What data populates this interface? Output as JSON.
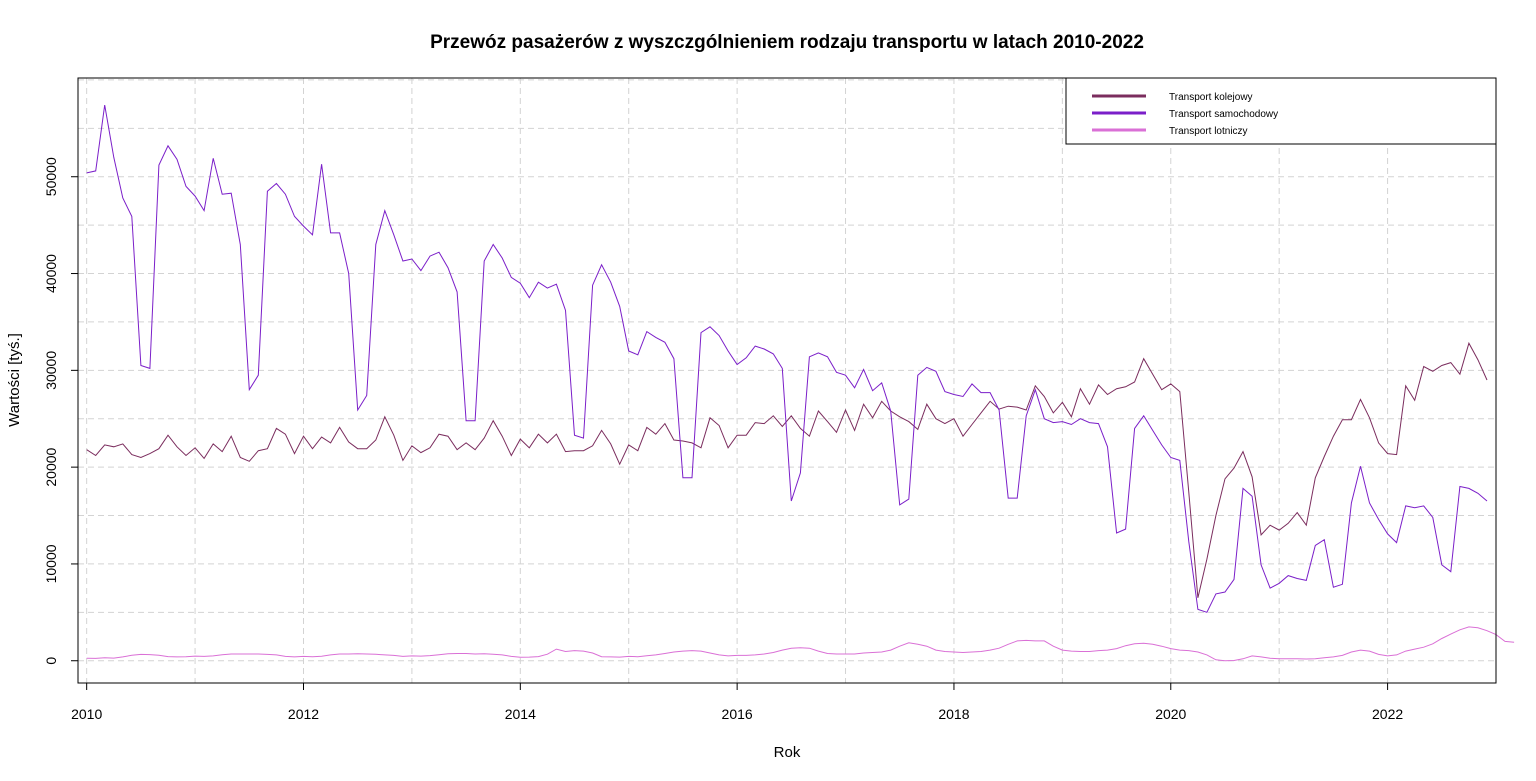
{
  "chart_data": {
    "type": "line",
    "title": "Przewóz pasażerów z wyszczgólnieniem rodzaju transportu w latach 2010-2022",
    "xlabel": "Rok",
    "ylabel": "Wartości [tyś.]",
    "xlim": [
      2009.92,
      2023.0
    ],
    "ylim": [
      -2300,
      60200
    ],
    "x_ticks": [
      2010,
      2012,
      2014,
      2016,
      2018,
      2020,
      2022
    ],
    "y_ticks": [
      0,
      10000,
      20000,
      30000,
      40000,
      50000
    ],
    "grid": true,
    "legend_position": "top-right",
    "x_start": 2010,
    "x_step": 0.083333,
    "series": [
      {
        "name": "Transport kolejowy",
        "color": "#7B2D5E",
        "values": [
          21800,
          21200,
          22300,
          22100,
          22400,
          21300,
          21000,
          21400,
          21900,
          23300,
          22100,
          21200,
          22000,
          20900,
          22400,
          21600,
          23200,
          21000,
          20600,
          21700,
          21900,
          24000,
          23400,
          21400,
          23200,
          21900,
          23100,
          22500,
          24100,
          22600,
          21900,
          21900,
          22800,
          25200,
          23300,
          20700,
          22200,
          21500,
          22000,
          23400,
          23200,
          21800,
          22500,
          21800,
          23000,
          24800,
          23200,
          21200,
          22900,
          22000,
          23400,
          22500,
          23400,
          21600,
          21700,
          21700,
          22200,
          23800,
          22400,
          20300,
          22300,
          21700,
          24100,
          23400,
          24500,
          22800,
          22700,
          22500,
          22000,
          25100,
          24300,
          22000,
          23300,
          23300,
          24600,
          24500,
          25300,
          24200,
          25300,
          24000,
          23200,
          25800,
          24700,
          23600,
          25900,
          23800,
          26500,
          25100,
          26800,
          25800,
          25200,
          24700,
          23900,
          26500,
          25000,
          24500,
          25000,
          23200,
          24400,
          25600,
          26800,
          26000,
          26300,
          26200,
          25900,
          28400,
          27300,
          25600,
          26700,
          25200,
          28100,
          26500,
          28500,
          27500,
          28100,
          28300,
          28800,
          31200,
          29600,
          28000,
          28600,
          27800,
          17400,
          6500,
          10500,
          15000,
          18800,
          19900,
          21600,
          19000,
          13000,
          14000,
          13500,
          14200,
          15300,
          14000,
          18900,
          21100,
          23200,
          24900,
          24900,
          27000,
          25100,
          22500,
          21400,
          21300,
          28400,
          26900,
          30400,
          29900,
          30500,
          30800,
          29600,
          32800,
          31100,
          29000
        ]
      },
      {
        "name": "Transport samochodowy",
        "color": "#7B1FC9",
        "values": [
          50400,
          50600,
          57400,
          52000,
          47800,
          45900,
          30500,
          30200,
          51200,
          53200,
          51800,
          49000,
          48000,
          46500,
          51900,
          48200,
          48300,
          43000,
          28000,
          29500,
          48500,
          49300,
          48200,
          45900,
          44900,
          44000,
          51300,
          44200,
          44200,
          40000,
          25900,
          27400,
          43000,
          46500,
          44000,
          41300,
          41500,
          40300,
          41800,
          42200,
          40600,
          38100,
          24800,
          24800,
          41300,
          43000,
          41600,
          39600,
          39000,
          37500,
          39100,
          38500,
          38900,
          36200,
          23300,
          23000,
          38800,
          40900,
          39100,
          36600,
          32000,
          31600,
          34000,
          33400,
          32900,
          31200,
          18900,
          18900,
          33900,
          34500,
          33600,
          32000,
          30600,
          31300,
          32500,
          32200,
          31700,
          30200,
          16500,
          19400,
          31400,
          31800,
          31400,
          29800,
          29500,
          28200,
          30100,
          27900,
          28700,
          25800,
          16100,
          16700,
          29500,
          30300,
          29900,
          27800,
          27500,
          27300,
          28600,
          27700,
          27700,
          25900,
          16800,
          16800,
          25300,
          28000,
          25000,
          24600,
          24700,
          24400,
          25000,
          24600,
          24500,
          22100,
          13200,
          13600,
          24000,
          25300,
          23800,
          22300,
          21000,
          20700,
          12300,
          5300,
          5000,
          6900,
          7100,
          8400,
          17800,
          17000,
          9900,
          7500,
          8000,
          8800,
          8500,
          8300,
          11900,
          12500,
          7600,
          7900,
          16300,
          20100,
          16300,
          14600,
          13100,
          12200,
          16000,
          15800,
          16000,
          14800,
          9900,
          9200,
          18000,
          17800,
          17300,
          16500
        ]
      },
      {
        "name": "Transport lotniczy",
        "color": "#DA70D6",
        "values": [
          250,
          240,
          300,
          270,
          400,
          560,
          650,
          630,
          560,
          430,
          400,
          420,
          480,
          450,
          500,
          620,
          700,
          700,
          700,
          700,
          650,
          600,
          450,
          400,
          450,
          420,
          470,
          600,
          700,
          700,
          720,
          700,
          670,
          600,
          550,
          450,
          500,
          480,
          530,
          620,
          720,
          750,
          750,
          700,
          730,
          680,
          600,
          450,
          350,
          380,
          430,
          680,
          1200,
          950,
          1050,
          1000,
          800,
          420,
          400,
          380,
          450,
          420,
          520,
          600,
          750,
          900,
          1000,
          1050,
          1000,
          800,
          600,
          500,
          550,
          550,
          600,
          700,
          850,
          1100,
          1300,
          1350,
          1300,
          1000,
          750,
          700,
          700,
          700,
          800,
          850,
          900,
          1100,
          1500,
          1850,
          1700,
          1500,
          1100,
          950,
          900,
          850,
          900,
          950,
          1100,
          1300,
          1700,
          2050,
          2100,
          2050,
          2050,
          1500,
          1100,
          1000,
          950,
          950,
          1050,
          1100,
          1250,
          1550,
          1750,
          1800,
          1700,
          1500,
          1250,
          1100,
          1050,
          900,
          600,
          100,
          0,
          20,
          200,
          500,
          400,
          250,
          200,
          200,
          200,
          180,
          200,
          300,
          400,
          550,
          900,
          1100,
          1000,
          650,
          500,
          600,
          1000,
          1200,
          1400,
          1750,
          2300,
          2750,
          3200,
          3500,
          3400,
          3100,
          2700,
          2000,
          1900
        ]
      }
    ]
  }
}
